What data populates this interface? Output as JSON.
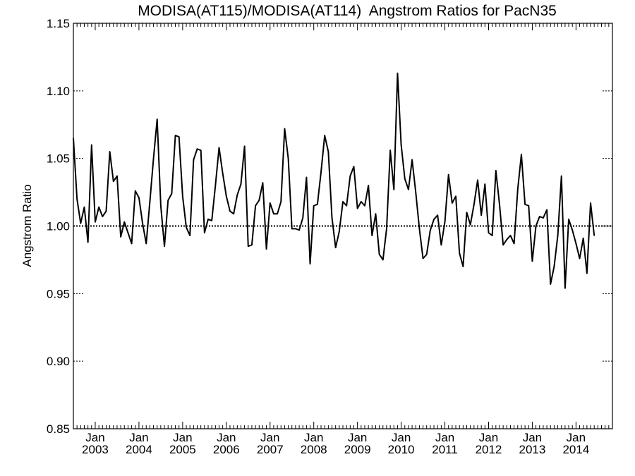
{
  "chart_data": {
    "type": "line",
    "title": "MODISA(AT115)/MODISA(AT114)  Angstrom Ratios for PacN35",
    "ylabel": "Angstrom Ratio",
    "xlabel": "",
    "ylim": [
      0.85,
      1.15
    ],
    "xlim": [
      "2002-07",
      "2014-11"
    ],
    "yticks": [
      "0.85",
      "0.90",
      "0.95",
      "1.00",
      "1.05",
      "1.10",
      "1.15"
    ],
    "xticks": [
      {
        "month": "Jan",
        "year": "2003",
        "date": "2003-01"
      },
      {
        "month": "Jan",
        "year": "2004",
        "date": "2004-01"
      },
      {
        "month": "Jan",
        "year": "2005",
        "date": "2005-01"
      },
      {
        "month": "Jan",
        "year": "2006",
        "date": "2006-01"
      },
      {
        "month": "Jan",
        "year": "2007",
        "date": "2007-01"
      },
      {
        "month": "Jan",
        "year": "2008",
        "date": "2008-01"
      },
      {
        "month": "Jan",
        "year": "2009",
        "date": "2009-01"
      },
      {
        "month": "Jan",
        "year": "2010",
        "date": "2010-01"
      },
      {
        "month": "Jan",
        "year": "2011",
        "date": "2011-01"
      },
      {
        "month": "Jan",
        "year": "2012",
        "date": "2012-01"
      },
      {
        "month": "Jan",
        "year": "2013",
        "date": "2013-01"
      },
      {
        "month": "Jan",
        "year": "2014",
        "date": "2014-01"
      }
    ],
    "reference_line": {
      "y": 1.0,
      "style": "dotted"
    },
    "grid": false,
    "legend": "none",
    "series": [
      {
        "color": "#000000",
        "points": [
          [
            "2002-07",
            1.065
          ],
          [
            "2002-08",
            1.02
          ],
          [
            "2002-09",
            1.002
          ],
          [
            "2002-10",
            1.014
          ],
          [
            "2002-11",
            0.988
          ],
          [
            "2002-12",
            1.06
          ],
          [
            "2003-01",
            1.003
          ],
          [
            "2003-02",
            1.014
          ],
          [
            "2003-03",
            1.007
          ],
          [
            "2003-04",
            1.011
          ],
          [
            "2003-05",
            1.055
          ],
          [
            "2003-06",
            1.033
          ],
          [
            "2003-07",
            1.037
          ],
          [
            "2003-08",
            0.992
          ],
          [
            "2003-09",
            1.003
          ],
          [
            "2003-10",
            0.995
          ],
          [
            "2003-11",
            0.987
          ],
          [
            "2003-12",
            1.026
          ],
          [
            "2004-01",
            1.021
          ],
          [
            "2004-02",
            1.002
          ],
          [
            "2004-03",
            0.987
          ],
          [
            "2004-04",
            1.018
          ],
          [
            "2004-05",
            1.05
          ],
          [
            "2004-06",
            1.079
          ],
          [
            "2004-07",
            1.015
          ],
          [
            "2004-08",
            0.985
          ],
          [
            "2004-09",
            1.019
          ],
          [
            "2004-10",
            1.024
          ],
          [
            "2004-11",
            1.067
          ],
          [
            "2004-12",
            1.066
          ],
          [
            "2005-01",
            1.022
          ],
          [
            "2005-02",
            0.999
          ],
          [
            "2005-03",
            0.993
          ],
          [
            "2005-04",
            1.049
          ],
          [
            "2005-05",
            1.057
          ],
          [
            "2005-06",
            1.056
          ],
          [
            "2005-07",
            0.995
          ],
          [
            "2005-08",
            1.005
          ],
          [
            "2005-09",
            1.004
          ],
          [
            "2005-10",
            1.03
          ],
          [
            "2005-11",
            1.058
          ],
          [
            "2005-12",
            1.039
          ],
          [
            "2006-01",
            1.022
          ],
          [
            "2006-02",
            1.011
          ],
          [
            "2006-03",
            1.009
          ],
          [
            "2006-04",
            1.023
          ],
          [
            "2006-05",
            1.031
          ],
          [
            "2006-06",
            1.059
          ],
          [
            "2006-07",
            0.985
          ],
          [
            "2006-08",
            0.986
          ],
          [
            "2006-09",
            1.015
          ],
          [
            "2006-10",
            1.019
          ],
          [
            "2006-11",
            1.032
          ],
          [
            "2006-12",
            0.983
          ],
          [
            "2007-01",
            1.017
          ],
          [
            "2007-02",
            1.009
          ],
          [
            "2007-03",
            1.009
          ],
          [
            "2007-04",
            1.018
          ],
          [
            "2007-05",
            1.072
          ],
          [
            "2007-06",
            1.05
          ],
          [
            "2007-07",
            0.998
          ],
          [
            "2007-08",
            0.998
          ],
          [
            "2007-09",
            0.997
          ],
          [
            "2007-10",
            1.006
          ],
          [
            "2007-11",
            1.036
          ],
          [
            "2007-12",
            0.972
          ],
          [
            "2008-01",
            1.015
          ],
          [
            "2008-02",
            1.016
          ],
          [
            "2008-03",
            1.04
          ],
          [
            "2008-04",
            1.067
          ],
          [
            "2008-05",
            1.055
          ],
          [
            "2008-06",
            1.006
          ],
          [
            "2008-07",
            0.984
          ],
          [
            "2008-08",
            0.996
          ],
          [
            "2008-09",
            1.018
          ],
          [
            "2008-10",
            1.015
          ],
          [
            "2008-11",
            1.037
          ],
          [
            "2008-12",
            1.044
          ],
          [
            "2009-01",
            1.013
          ],
          [
            "2009-02",
            1.018
          ],
          [
            "2009-03",
            1.015
          ],
          [
            "2009-04",
            1.03
          ],
          [
            "2009-05",
            0.993
          ],
          [
            "2009-06",
            1.009
          ],
          [
            "2009-07",
            0.979
          ],
          [
            "2009-08",
            0.975
          ],
          [
            "2009-09",
            0.998
          ],
          [
            "2009-10",
            1.056
          ],
          [
            "2009-11",
            1.027
          ],
          [
            "2009-12",
            1.113
          ],
          [
            "2010-01",
            1.06
          ],
          [
            "2010-02",
            1.035
          ],
          [
            "2010-03",
            1.027
          ],
          [
            "2010-04",
            1.049
          ],
          [
            "2010-05",
            1.025
          ],
          [
            "2010-06",
            0.998
          ],
          [
            "2010-07",
            0.976
          ],
          [
            "2010-08",
            0.979
          ],
          [
            "2010-09",
            0.997
          ],
          [
            "2010-10",
            1.005
          ],
          [
            "2010-11",
            1.008
          ],
          [
            "2010-12",
            0.986
          ],
          [
            "2011-01",
            1.003
          ],
          [
            "2011-02",
            1.038
          ],
          [
            "2011-03",
            1.017
          ],
          [
            "2011-04",
            1.022
          ],
          [
            "2011-05",
            0.98
          ],
          [
            "2011-06",
            0.97
          ],
          [
            "2011-07",
            1.01
          ],
          [
            "2011-08",
            1.001
          ],
          [
            "2011-09",
            1.016
          ],
          [
            "2011-10",
            1.034
          ],
          [
            "2011-11",
            1.008
          ],
          [
            "2011-12",
            1.031
          ],
          [
            "2012-01",
            0.995
          ],
          [
            "2012-02",
            0.993
          ],
          [
            "2012-03",
            1.041
          ],
          [
            "2012-04",
            1.016
          ],
          [
            "2012-05",
            0.986
          ],
          [
            "2012-06",
            0.99
          ],
          [
            "2012-07",
            0.993
          ],
          [
            "2012-08",
            0.987
          ],
          [
            "2012-09",
            1.027
          ],
          [
            "2012-10",
            1.053
          ],
          [
            "2012-11",
            1.016
          ],
          [
            "2012-12",
            1.015
          ],
          [
            "2013-01",
            0.974
          ],
          [
            "2013-02",
            1.0
          ],
          [
            "2013-03",
            1.007
          ],
          [
            "2013-04",
            1.006
          ],
          [
            "2013-05",
            1.012
          ],
          [
            "2013-06",
            0.957
          ],
          [
            "2013-07",
            0.97
          ],
          [
            "2013-08",
            0.993
          ],
          [
            "2013-09",
            1.037
          ],
          [
            "2013-10",
            0.954
          ],
          [
            "2013-11",
            1.005
          ],
          [
            "2013-12",
            0.997
          ],
          [
            "2014-01",
            0.987
          ],
          [
            "2014-02",
            0.976
          ],
          [
            "2014-03",
            0.991
          ],
          [
            "2014-04",
            0.965
          ],
          [
            "2014-05",
            1.017
          ],
          [
            "2014-06",
            0.993
          ]
        ]
      }
    ]
  }
}
